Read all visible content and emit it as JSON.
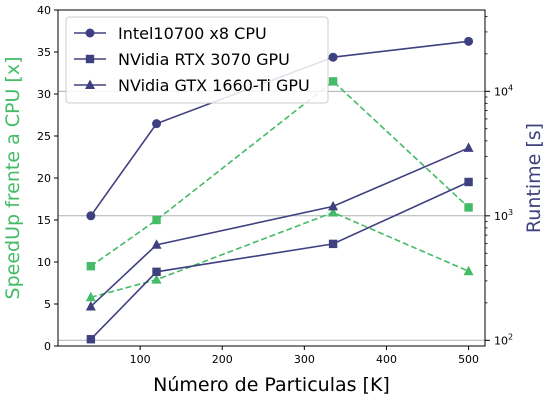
{
  "chart_data": {
    "type": "line",
    "xlabel": "Número de Particulas [K]",
    "xlim": [
      0,
      520
    ],
    "xticks": [
      100,
      200,
      300,
      400,
      500
    ],
    "left_axis": {
      "label": "SpeedUp frente a CPU [x]",
      "color": "#44bb66",
      "ylim": [
        0,
        40
      ],
      "ticks": [
        0,
        5,
        10,
        15,
        20,
        25,
        30,
        35,
        40
      ],
      "scale": "linear"
    },
    "right_axis": {
      "label": "Runtime [s]",
      "color": "#3f4080",
      "ylim": [
        90,
        45000
      ],
      "scale": "log",
      "major_ticks": [
        {
          "value": 100,
          "label_base": "10",
          "label_exp": "2"
        },
        {
          "value": 1000,
          "label_base": "10",
          "label_exp": "3"
        },
        {
          "value": 10000,
          "label_base": "10",
          "label_exp": "4"
        }
      ]
    },
    "grid": "horizontal lines at right-axis major ticks",
    "legend": {
      "placement": "top-left"
    },
    "x": [
      40,
      120,
      335,
      500
    ],
    "runtime_series": [
      {
        "name": "Intel10700 x8 CPU",
        "marker": "circle",
        "values": [
          1000,
          5500,
          18800,
          25200
        ]
      },
      {
        "name": "NVidia RTX 3070 GPU",
        "marker": "square",
        "values": [
          102,
          355,
          595,
          1870
        ]
      },
      {
        "name": "NVidia GTX 1660-Ti GPU",
        "marker": "triangle",
        "values": [
          187,
          585,
          1190,
          3510
        ]
      }
    ],
    "speedup_series": [
      {
        "marker": "square",
        "values": [
          9.5,
          15.0,
          31.5,
          16.5
        ]
      },
      {
        "marker": "triangle",
        "values": [
          5.8,
          7.9,
          15.9,
          8.9
        ]
      }
    ],
    "colors": {
      "runtime_line": "#3f4080",
      "speedup_line": "#44bb66",
      "grid": "#b0b0b0"
    }
  }
}
